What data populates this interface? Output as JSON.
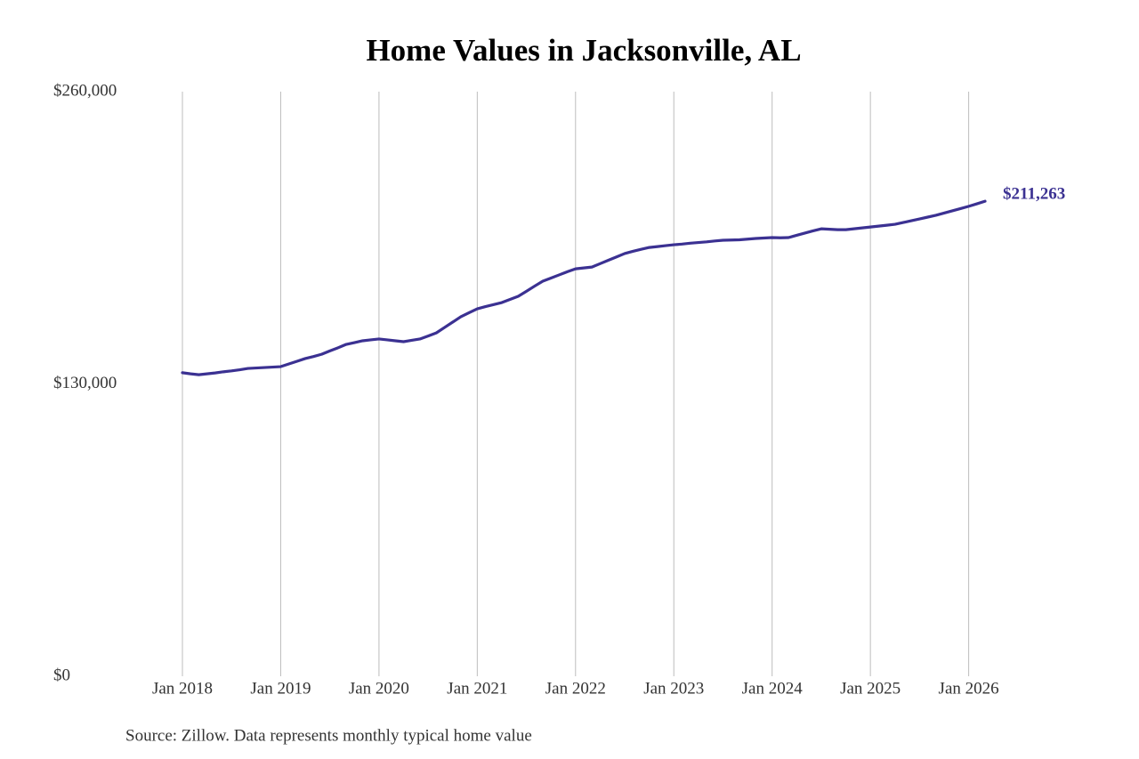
{
  "chart_data": {
    "type": "line",
    "title": "Home Values in Jacksonville, AL",
    "source": "Source: Zillow. Data represents monthly typical home value",
    "x": [
      "2018-01",
      "2018-02",
      "2018-03",
      "2018-04",
      "2018-05",
      "2018-06",
      "2018-07",
      "2018-08",
      "2018-09",
      "2018-10",
      "2018-11",
      "2018-12",
      "2019-01",
      "2019-02",
      "2019-03",
      "2019-04",
      "2019-05",
      "2019-06",
      "2019-07",
      "2019-08",
      "2019-09",
      "2019-10",
      "2019-11",
      "2019-12",
      "2020-01",
      "2020-02",
      "2020-03",
      "2020-04",
      "2020-05",
      "2020-06",
      "2020-07",
      "2020-08",
      "2020-09",
      "2020-10",
      "2020-11",
      "2020-12",
      "2021-01",
      "2021-02",
      "2021-03",
      "2021-04",
      "2021-05",
      "2021-06",
      "2021-07",
      "2021-08",
      "2021-09",
      "2021-10",
      "2021-11",
      "2021-12",
      "2022-01",
      "2022-02",
      "2022-03",
      "2022-04",
      "2022-05",
      "2022-06",
      "2022-07",
      "2022-08",
      "2022-09",
      "2022-10",
      "2022-11",
      "2022-12",
      "2023-01",
      "2023-02",
      "2023-03",
      "2023-04",
      "2023-05",
      "2023-06",
      "2023-07",
      "2023-08",
      "2023-09",
      "2023-10",
      "2023-11",
      "2023-12",
      "2024-01",
      "2024-02",
      "2024-03",
      "2024-04",
      "2024-05",
      "2024-06",
      "2024-07",
      "2024-08",
      "2024-09",
      "2024-10",
      "2024-11",
      "2024-12",
      "2025-01",
      "2025-02",
      "2025-03",
      "2025-04",
      "2025-05",
      "2025-06",
      "2025-07",
      "2025-08",
      "2025-09",
      "2025-10",
      "2025-11",
      "2025-12",
      "2026-01",
      "2026-02",
      "2026-03"
    ],
    "series": [
      {
        "name": "Home value",
        "color": "#3b3192",
        "values": [
          135000,
          134500,
          134100,
          134500,
          134900,
          135400,
          135800,
          136300,
          136900,
          137100,
          137300,
          137500,
          137700,
          138900,
          140100,
          141300,
          142200,
          143200,
          144700,
          146100,
          147600,
          148400,
          149200,
          149600,
          150000,
          149600,
          149200,
          148800,
          149400,
          150000,
          151300,
          152700,
          155100,
          157500,
          159900,
          161700,
          163400,
          164400,
          165300,
          166200,
          167600,
          169000,
          171200,
          173500,
          175700,
          177100,
          178500,
          179900,
          181200,
          181600,
          182000,
          183500,
          185000,
          186500,
          188000,
          189000,
          189900,
          190700,
          191100,
          191500,
          191900,
          192200,
          192600,
          192900,
          193200,
          193600,
          193900,
          194000,
          194100,
          194400,
          194700,
          194900,
          195100,
          195000,
          195100,
          196100,
          197100,
          198100,
          199000,
          198800,
          198600,
          198600,
          199000,
          199400,
          199800,
          200200,
          200600,
          201000,
          201800,
          202600,
          203400,
          204200,
          205000,
          206000,
          207000,
          208000,
          209000,
          210100,
          211263
        ],
        "value_labels": [
          null,
          null,
          null,
          null,
          null,
          null,
          null,
          null,
          null,
          null,
          null,
          null,
          null,
          null,
          null,
          null,
          null,
          null,
          null,
          null,
          null,
          null,
          null,
          null,
          null,
          null,
          null,
          null,
          null,
          null,
          null,
          null,
          null,
          null,
          null,
          null,
          null,
          null,
          null,
          null,
          null,
          null,
          null,
          null,
          null,
          null,
          null,
          null,
          null,
          null,
          null,
          null,
          null,
          null,
          null,
          null,
          null,
          null,
          null,
          null,
          null,
          null,
          null,
          null,
          null,
          null,
          null,
          null,
          null,
          null,
          null,
          null,
          null,
          null,
          null,
          null,
          null,
          null,
          null,
          null,
          null,
          null,
          null,
          null,
          null,
          null,
          null,
          null,
          null,
          null,
          null,
          null,
          null,
          null,
          null,
          null,
          null,
          null,
          "$211,263"
        ]
      }
    ],
    "xticks": [
      {
        "value": "2018-01",
        "label": "Jan 2018"
      },
      {
        "value": "2019-01",
        "label": "Jan 2019"
      },
      {
        "value": "2020-01",
        "label": "Jan 2020"
      },
      {
        "value": "2021-01",
        "label": "Jan 2021"
      },
      {
        "value": "2022-01",
        "label": "Jan 2022"
      },
      {
        "value": "2023-01",
        "label": "Jan 2023"
      },
      {
        "value": "2024-01",
        "label": "Jan 2024"
      },
      {
        "value": "2025-01",
        "label": "Jan 2025"
      },
      {
        "value": "2026-01",
        "label": "Jan 2026"
      }
    ],
    "ylim": [
      0,
      260000
    ],
    "yticks": [
      {
        "value": 0,
        "label": "$0"
      },
      {
        "value": 130000,
        "label": "$130,000"
      },
      {
        "value": 260000,
        "label": "$260,000"
      }
    ],
    "grid": "x"
  }
}
